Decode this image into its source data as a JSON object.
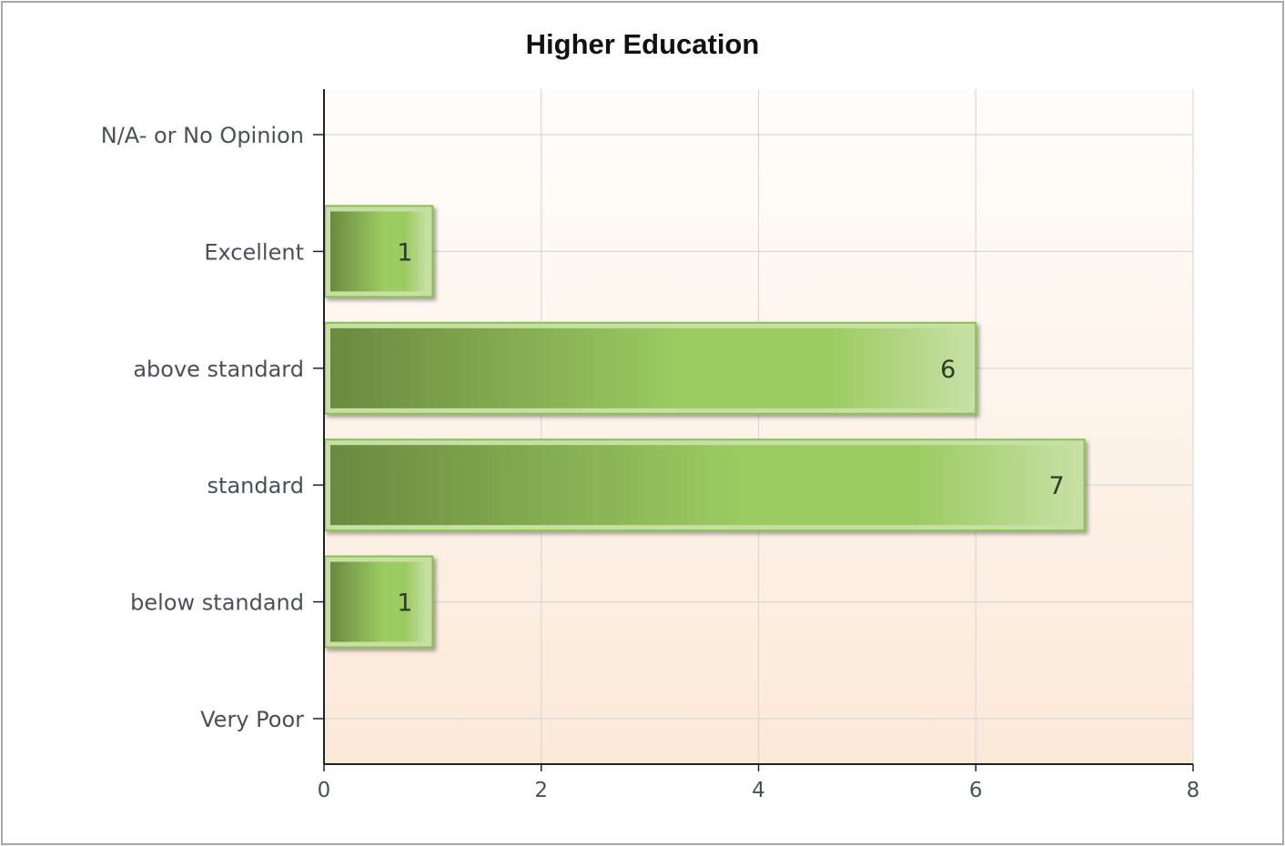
{
  "chart_data": {
    "type": "bar",
    "orientation": "horizontal",
    "title": "Higher Education",
    "categories": [
      "N/A- or No Opinion",
      "Excellent",
      "above standard",
      "standard",
      "below standand",
      "Very Poor"
    ],
    "values": [
      null,
      1,
      6,
      7,
      1,
      null
    ],
    "data_labels": [
      "",
      "1",
      "6",
      "7",
      "1",
      ""
    ],
    "xlim": [
      0,
      8
    ],
    "xticks": [
      0,
      2,
      4,
      6,
      8
    ],
    "xtick_labels": [
      "0",
      "2",
      "4",
      "6",
      "8"
    ],
    "xlabel": "",
    "ylabel": "",
    "grid": true,
    "legend": "none",
    "colors": {
      "bar_dark": "#6a8a3f",
      "bar_mid": "#9ccb62",
      "bar_light": "#c6e0a4",
      "bar_border": "#8bbf55",
      "plot_bg_top": "#fffdfb",
      "plot_bg_bottom": "#fbe9d8",
      "grid": "#d8d8d8",
      "axis": "#222222"
    }
  }
}
